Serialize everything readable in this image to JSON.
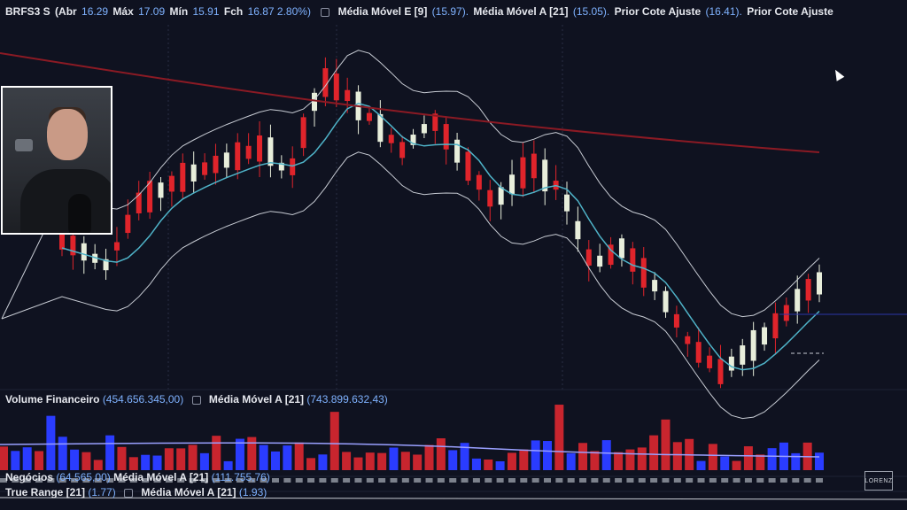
{
  "header": {
    "symbol": "BRFS3 S",
    "open_label": "(Abr",
    "open_value": "16.29",
    "high_label": "Máx",
    "high_value": "17.09",
    "low_label": "Mín",
    "low_value": "15.91",
    "close_label": "Fch",
    "close_value": "16.87 2.80%)",
    "ema_label": "Média Móvel E [9]",
    "ema_value": "(15.97).",
    "sma_label": "Média Móvel A [21]",
    "sma_value": "(15.05).",
    "prior1_label": "Prior Cote Ajuste",
    "prior1_value": "(16.41).",
    "prior2_label": "Prior Cote Ajuste"
  },
  "volume_pane": {
    "title": "Volume Financeiro",
    "value": "(454.656.345,00)",
    "ma_label": "Média Móvel A [21]",
    "ma_value": "(743.899.632,43)"
  },
  "trades_pane": {
    "title": "Negócios",
    "value": "(64.565,00)",
    "ma_label": "Média Móvel A [21]",
    "ma_value": "(111.755,76)"
  },
  "true_range_pane": {
    "title": "True Range [21]",
    "value": "(1.77)",
    "ma_label": "Média Móvel A [21]",
    "ma_value": "(1.93)"
  },
  "watermark": "LORENZ",
  "colors": {
    "background": "#0f1220",
    "up_candle": "#e8eedb",
    "down_candle": "#e0242b",
    "ema": "#4fb3c8",
    "bollinger": "#c8ccd4",
    "long_ma": "#8b1a24",
    "volume_blue": "#2a3cff",
    "volume_red": "#c8252e"
  }
}
